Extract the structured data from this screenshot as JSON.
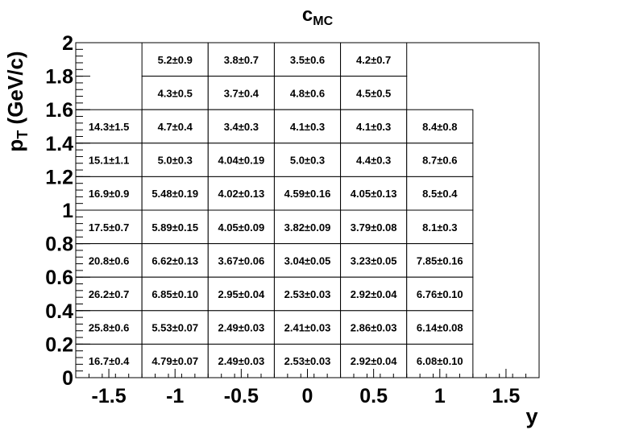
{
  "chart_data": {
    "type": "heatmap",
    "title": "c",
    "title_sub": "MC",
    "xlabel": "y",
    "ylabel_main": "p",
    "ylabel_sub": "T",
    "ylabel_rest": " (GeV/c)",
    "xlim": [
      -1.75,
      1.75
    ],
    "ylim": [
      0,
      2
    ],
    "x_ticks": [
      "-1.5",
      "-1",
      "-0.5",
      "0",
      "0.5",
      "1",
      "1.5"
    ],
    "y_ticks": [
      "0",
      "0.2",
      "0.4",
      "0.6",
      "0.8",
      "1",
      "1.2",
      "1.4",
      "1.6",
      "1.8",
      "2"
    ],
    "cells": [
      {
        "x0": -1.25,
        "x1": -0.75,
        "y0": 1.8,
        "y1": 2.0,
        "label": "5.2±0.9"
      },
      {
        "x0": -0.75,
        "x1": -0.25,
        "y0": 1.8,
        "y1": 2.0,
        "label": "3.8±0.7"
      },
      {
        "x0": -0.25,
        "x1": 0.25,
        "y0": 1.8,
        "y1": 2.0,
        "label": "3.5±0.6"
      },
      {
        "x0": 0.25,
        "x1": 0.75,
        "y0": 1.8,
        "y1": 2.0,
        "label": "4.2±0.7"
      },
      {
        "x0": -1.25,
        "x1": -0.75,
        "y0": 1.6,
        "y1": 1.8,
        "label": "4.3±0.5"
      },
      {
        "x0": -0.75,
        "x1": -0.25,
        "y0": 1.6,
        "y1": 1.8,
        "label": "3.7±0.4"
      },
      {
        "x0": -0.25,
        "x1": 0.25,
        "y0": 1.6,
        "y1": 1.8,
        "label": "4.8±0.6"
      },
      {
        "x0": 0.25,
        "x1": 0.75,
        "y0": 1.6,
        "y1": 1.8,
        "label": "4.5±0.5"
      },
      {
        "x0": -1.75,
        "x1": -1.25,
        "y0": 1.4,
        "y1": 1.6,
        "label": "14.3±1.5"
      },
      {
        "x0": -1.25,
        "x1": -0.75,
        "y0": 1.4,
        "y1": 1.6,
        "label": "4.7±0.4"
      },
      {
        "x0": -0.75,
        "x1": -0.25,
        "y0": 1.4,
        "y1": 1.6,
        "label": "3.4±0.3"
      },
      {
        "x0": -0.25,
        "x1": 0.25,
        "y0": 1.4,
        "y1": 1.6,
        "label": "4.1±0.3"
      },
      {
        "x0": 0.25,
        "x1": 0.75,
        "y0": 1.4,
        "y1": 1.6,
        "label": "4.1±0.3"
      },
      {
        "x0": 0.75,
        "x1": 1.25,
        "y0": 1.4,
        "y1": 1.6,
        "label": "8.4±0.8"
      },
      {
        "x0": -1.75,
        "x1": -1.25,
        "y0": 1.2,
        "y1": 1.4,
        "label": "15.1±1.1"
      },
      {
        "x0": -1.25,
        "x1": -0.75,
        "y0": 1.2,
        "y1": 1.4,
        "label": "5.0±0.3"
      },
      {
        "x0": -0.75,
        "x1": -0.25,
        "y0": 1.2,
        "y1": 1.4,
        "label": "4.04±0.19"
      },
      {
        "x0": -0.25,
        "x1": 0.25,
        "y0": 1.2,
        "y1": 1.4,
        "label": "5.0±0.3"
      },
      {
        "x0": 0.25,
        "x1": 0.75,
        "y0": 1.2,
        "y1": 1.4,
        "label": "4.4±0.3"
      },
      {
        "x0": 0.75,
        "x1": 1.25,
        "y0": 1.2,
        "y1": 1.4,
        "label": "8.7±0.6"
      },
      {
        "x0": -1.75,
        "x1": -1.25,
        "y0": 1.0,
        "y1": 1.2,
        "label": "16.9±0.9"
      },
      {
        "x0": -1.25,
        "x1": -0.75,
        "y0": 1.0,
        "y1": 1.2,
        "label": "5.48±0.19"
      },
      {
        "x0": -0.75,
        "x1": -0.25,
        "y0": 1.0,
        "y1": 1.2,
        "label": "4.02±0.13"
      },
      {
        "x0": -0.25,
        "x1": 0.25,
        "y0": 1.0,
        "y1": 1.2,
        "label": "4.59±0.16"
      },
      {
        "x0": 0.25,
        "x1": 0.75,
        "y0": 1.0,
        "y1": 1.2,
        "label": "4.05±0.13"
      },
      {
        "x0": 0.75,
        "x1": 1.25,
        "y0": 1.0,
        "y1": 1.2,
        "label": "8.5±0.4"
      },
      {
        "x0": -1.75,
        "x1": -1.25,
        "y0": 0.8,
        "y1": 1.0,
        "label": "17.5±0.7"
      },
      {
        "x0": -1.25,
        "x1": -0.75,
        "y0": 0.8,
        "y1": 1.0,
        "label": "5.89±0.15"
      },
      {
        "x0": -0.75,
        "x1": -0.25,
        "y0": 0.8,
        "y1": 1.0,
        "label": "4.05±0.09"
      },
      {
        "x0": -0.25,
        "x1": 0.25,
        "y0": 0.8,
        "y1": 1.0,
        "label": "3.82±0.09"
      },
      {
        "x0": 0.25,
        "x1": 0.75,
        "y0": 0.8,
        "y1": 1.0,
        "label": "3.79±0.08"
      },
      {
        "x0": 0.75,
        "x1": 1.25,
        "y0": 0.8,
        "y1": 1.0,
        "label": "8.1±0.3"
      },
      {
        "x0": -1.75,
        "x1": -1.25,
        "y0": 0.6,
        "y1": 0.8,
        "label": "20.8±0.6"
      },
      {
        "x0": -1.25,
        "x1": -0.75,
        "y0": 0.6,
        "y1": 0.8,
        "label": "6.62±0.13"
      },
      {
        "x0": -0.75,
        "x1": -0.25,
        "y0": 0.6,
        "y1": 0.8,
        "label": "3.67±0.06"
      },
      {
        "x0": -0.25,
        "x1": 0.25,
        "y0": 0.6,
        "y1": 0.8,
        "label": "3.04±0.05"
      },
      {
        "x0": 0.25,
        "x1": 0.75,
        "y0": 0.6,
        "y1": 0.8,
        "label": "3.23±0.05"
      },
      {
        "x0": 0.75,
        "x1": 1.25,
        "y0": 0.6,
        "y1": 0.8,
        "label": "7.85±0.16"
      },
      {
        "x0": -1.75,
        "x1": -1.25,
        "y0": 0.4,
        "y1": 0.6,
        "label": "26.2±0.7"
      },
      {
        "x0": -1.25,
        "x1": -0.75,
        "y0": 0.4,
        "y1": 0.6,
        "label": "6.85±0.10"
      },
      {
        "x0": -0.75,
        "x1": -0.25,
        "y0": 0.4,
        "y1": 0.6,
        "label": "2.95±0.04"
      },
      {
        "x0": -0.25,
        "x1": 0.25,
        "y0": 0.4,
        "y1": 0.6,
        "label": "2.53±0.03"
      },
      {
        "x0": 0.25,
        "x1": 0.75,
        "y0": 0.4,
        "y1": 0.6,
        "label": "2.92±0.04"
      },
      {
        "x0": 0.75,
        "x1": 1.25,
        "y0": 0.4,
        "y1": 0.6,
        "label": "6.76±0.10"
      },
      {
        "x0": -1.75,
        "x1": -1.25,
        "y0": 0.2,
        "y1": 0.4,
        "label": "25.8±0.6"
      },
      {
        "x0": -1.25,
        "x1": -0.75,
        "y0": 0.2,
        "y1": 0.4,
        "label": "5.53±0.07"
      },
      {
        "x0": -0.75,
        "x1": -0.25,
        "y0": 0.2,
        "y1": 0.4,
        "label": "2.49±0.03"
      },
      {
        "x0": -0.25,
        "x1": 0.25,
        "y0": 0.2,
        "y1": 0.4,
        "label": "2.41±0.03"
      },
      {
        "x0": 0.25,
        "x1": 0.75,
        "y0": 0.2,
        "y1": 0.4,
        "label": "2.86±0.03"
      },
      {
        "x0": 0.75,
        "x1": 1.25,
        "y0": 0.2,
        "y1": 0.4,
        "label": "6.14±0.08"
      },
      {
        "x0": -1.75,
        "x1": -1.25,
        "y0": 0.0,
        "y1": 0.2,
        "label": "16.7±0.4"
      },
      {
        "x0": -1.25,
        "x1": -0.75,
        "y0": 0.0,
        "y1": 0.2,
        "label": "4.79±0.07"
      },
      {
        "x0": -0.75,
        "x1": -0.25,
        "y0": 0.0,
        "y1": 0.2,
        "label": "2.49±0.03"
      },
      {
        "x0": -0.25,
        "x1": 0.25,
        "y0": 0.0,
        "y1": 0.2,
        "label": "2.53±0.03"
      },
      {
        "x0": 0.25,
        "x1": 0.75,
        "y0": 0.0,
        "y1": 0.2,
        "label": "2.92±0.04"
      },
      {
        "x0": 0.75,
        "x1": 1.25,
        "y0": 0.0,
        "y1": 0.2,
        "label": "6.08±0.10"
      }
    ]
  }
}
